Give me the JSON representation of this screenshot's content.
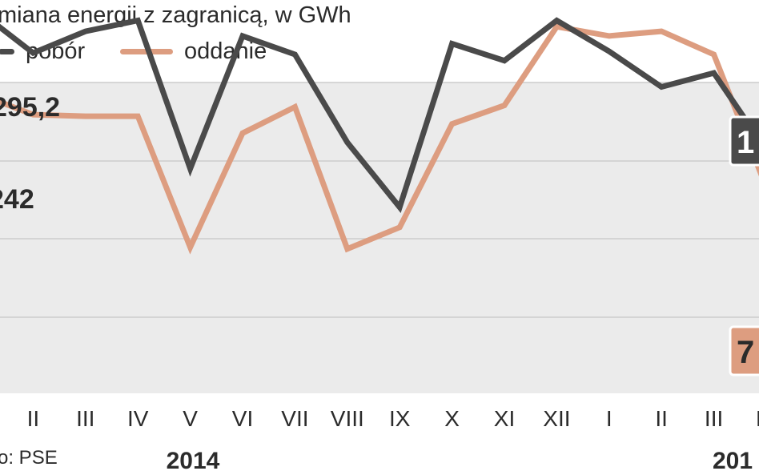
{
  "header": {
    "title": "miana energii z zagranicą, w GWh",
    "source": "o: PSE"
  },
  "colors": {
    "pobor": "#4a4a4a",
    "oddanie": "#dd9d80",
    "plot_background": "#ebebeb",
    "gridline": "#cccccc",
    "text": "#2b2b2b"
  },
  "chart_data": {
    "type": "line",
    "title": "miana energii z zagranicą, w GWh",
    "xlabel": "",
    "ylabel": "",
    "x": [
      "",
      "II",
      "III",
      "IV",
      "V",
      "VI",
      "VII",
      "VIII",
      "IX",
      "X",
      "XI",
      "XII",
      "I",
      "II",
      "III",
      "IV",
      ""
    ],
    "year_labels": [
      "2014",
      "201"
    ],
    "grid": true,
    "legend_position": "top-left",
    "series": [
      {
        "name": "pobór",
        "values": [
          295.2,
          269,
          283,
          290,
          194,
          280,
          268,
          211,
          169,
          275,
          264,
          290,
          270,
          247,
          256,
          206,
          183
        ]
      },
      {
        "name": "oddanie",
        "values": [
          242,
          229,
          228,
          228,
          143,
          217,
          234,
          142,
          156,
          223,
          235,
          286,
          280,
          283,
          268,
          182,
          141
        ]
      }
    ],
    "annotations": [
      "295,2",
      "242",
      "1",
      "7"
    ]
  }
}
